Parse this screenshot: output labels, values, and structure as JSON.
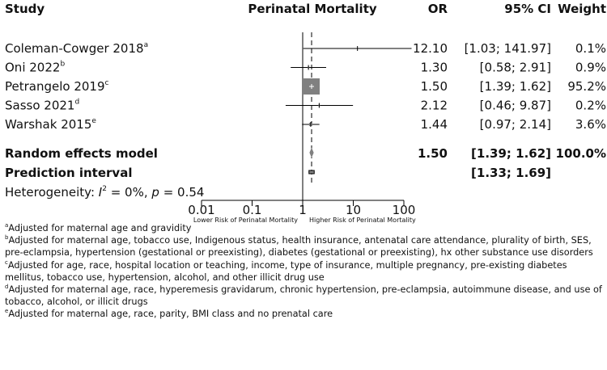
{
  "chart_data": {
    "type": "forest",
    "headers": {
      "study": "Study",
      "plot": "Perinatal Mortality",
      "or": "OR",
      "ci": "95% CI",
      "weight": "Weight"
    },
    "studies": [
      {
        "name": "Coleman-Cowger 2018",
        "sup": "a",
        "or": 12.1,
        "lower": 1.03,
        "upper": 141.97,
        "weight": 0.1,
        "or_text": "12.10",
        "ci_text": "[1.03; 141.97]",
        "weight_text": "0.1%"
      },
      {
        "name": "Oni 2022",
        "sup": "b",
        "or": 1.3,
        "lower": 0.58,
        "upper": 2.91,
        "weight": 0.9,
        "or_text": "1.30",
        "ci_text": "[0.58; 2.91]",
        "weight_text": "0.9%"
      },
      {
        "name": "Petrangelo 2019",
        "sup": "c",
        "or": 1.5,
        "lower": 1.39,
        "upper": 1.62,
        "weight": 95.2,
        "or_text": "1.50",
        "ci_text": "[1.39; 1.62]",
        "weight_text": "95.2%"
      },
      {
        "name": "Sasso 2021",
        "sup": "d",
        "or": 2.12,
        "lower": 0.46,
        "upper": 9.87,
        "weight": 0.2,
        "or_text": "2.12",
        "ci_text": "[0.46; 9.87]",
        "weight_text": "0.2%"
      },
      {
        "name": "Warshak 2015",
        "sup": "e",
        "or": 1.44,
        "lower": 0.97,
        "upper": 2.14,
        "weight": 3.6,
        "or_text": "1.44",
        "ci_text": "[0.97; 2.14]",
        "weight_text": "3.6%"
      }
    ],
    "random_effects": {
      "label": "Random effects model",
      "or": 1.5,
      "lower": 1.39,
      "upper": 1.62,
      "or_text": "1.50",
      "ci_text": "[1.39; 1.62]",
      "weight_text": "100.0%"
    },
    "prediction_interval": {
      "label": "Prediction interval",
      "lower": 1.33,
      "upper": 1.69,
      "ci_text": "[1.33; 1.69]"
    },
    "heterogeneity": {
      "prefix": "Heterogeneity: ",
      "i2_symbol": "I",
      "i2_sup": "2",
      "i2_value": " = 0%, ",
      "p_symbol": "p",
      "p_value": " = 0.54"
    },
    "x_axis": {
      "scale": "log",
      "range": [
        0.01,
        100
      ],
      "ticks": [
        0.01,
        0.1,
        1,
        10,
        100
      ],
      "tick_labels": [
        "0.01",
        "0.1",
        "1",
        "10",
        "100"
      ],
      "null_line": 1,
      "left_label": "Lower Risk of Perinatal Mortality",
      "right_label": "Higher Risk of Perinatal Mortality"
    },
    "colors": {
      "text": "#111111",
      "box": "#808080",
      "diamond": "#808080",
      "line": "#000000"
    }
  },
  "footnotes": [
    {
      "sup": "a",
      "text": "Adjusted for maternal age and gravidity"
    },
    {
      "sup": "b",
      "text": "Adjusted for maternal age, tobacco use, Indigenous status, health insurance, antenatal care attendance, plurality of birth, SES, pre-eclampsia, hypertension (gestational or preexisting), diabetes (gestational or preexisting), hx other substance use disorders"
    },
    {
      "sup": "c",
      "text": "Adjusted for age, race, hospital location or teaching, income, type of insurance, multiple pregnancy, pre-existing diabetes mellitus, tobacco use, hypertension, alcohol, and other illicit drug use"
    },
    {
      "sup": "d",
      "text": "Adjusted for maternal age, race, hyperemesis gravidarum, chronic hypertension, pre-eclampsia, autoimmune disease, and use of tobacco, alcohol, or illicit drugs"
    },
    {
      "sup": "e",
      "text": "Adjusted for maternal age, race, parity, BMI class and no prenatal care"
    }
  ]
}
